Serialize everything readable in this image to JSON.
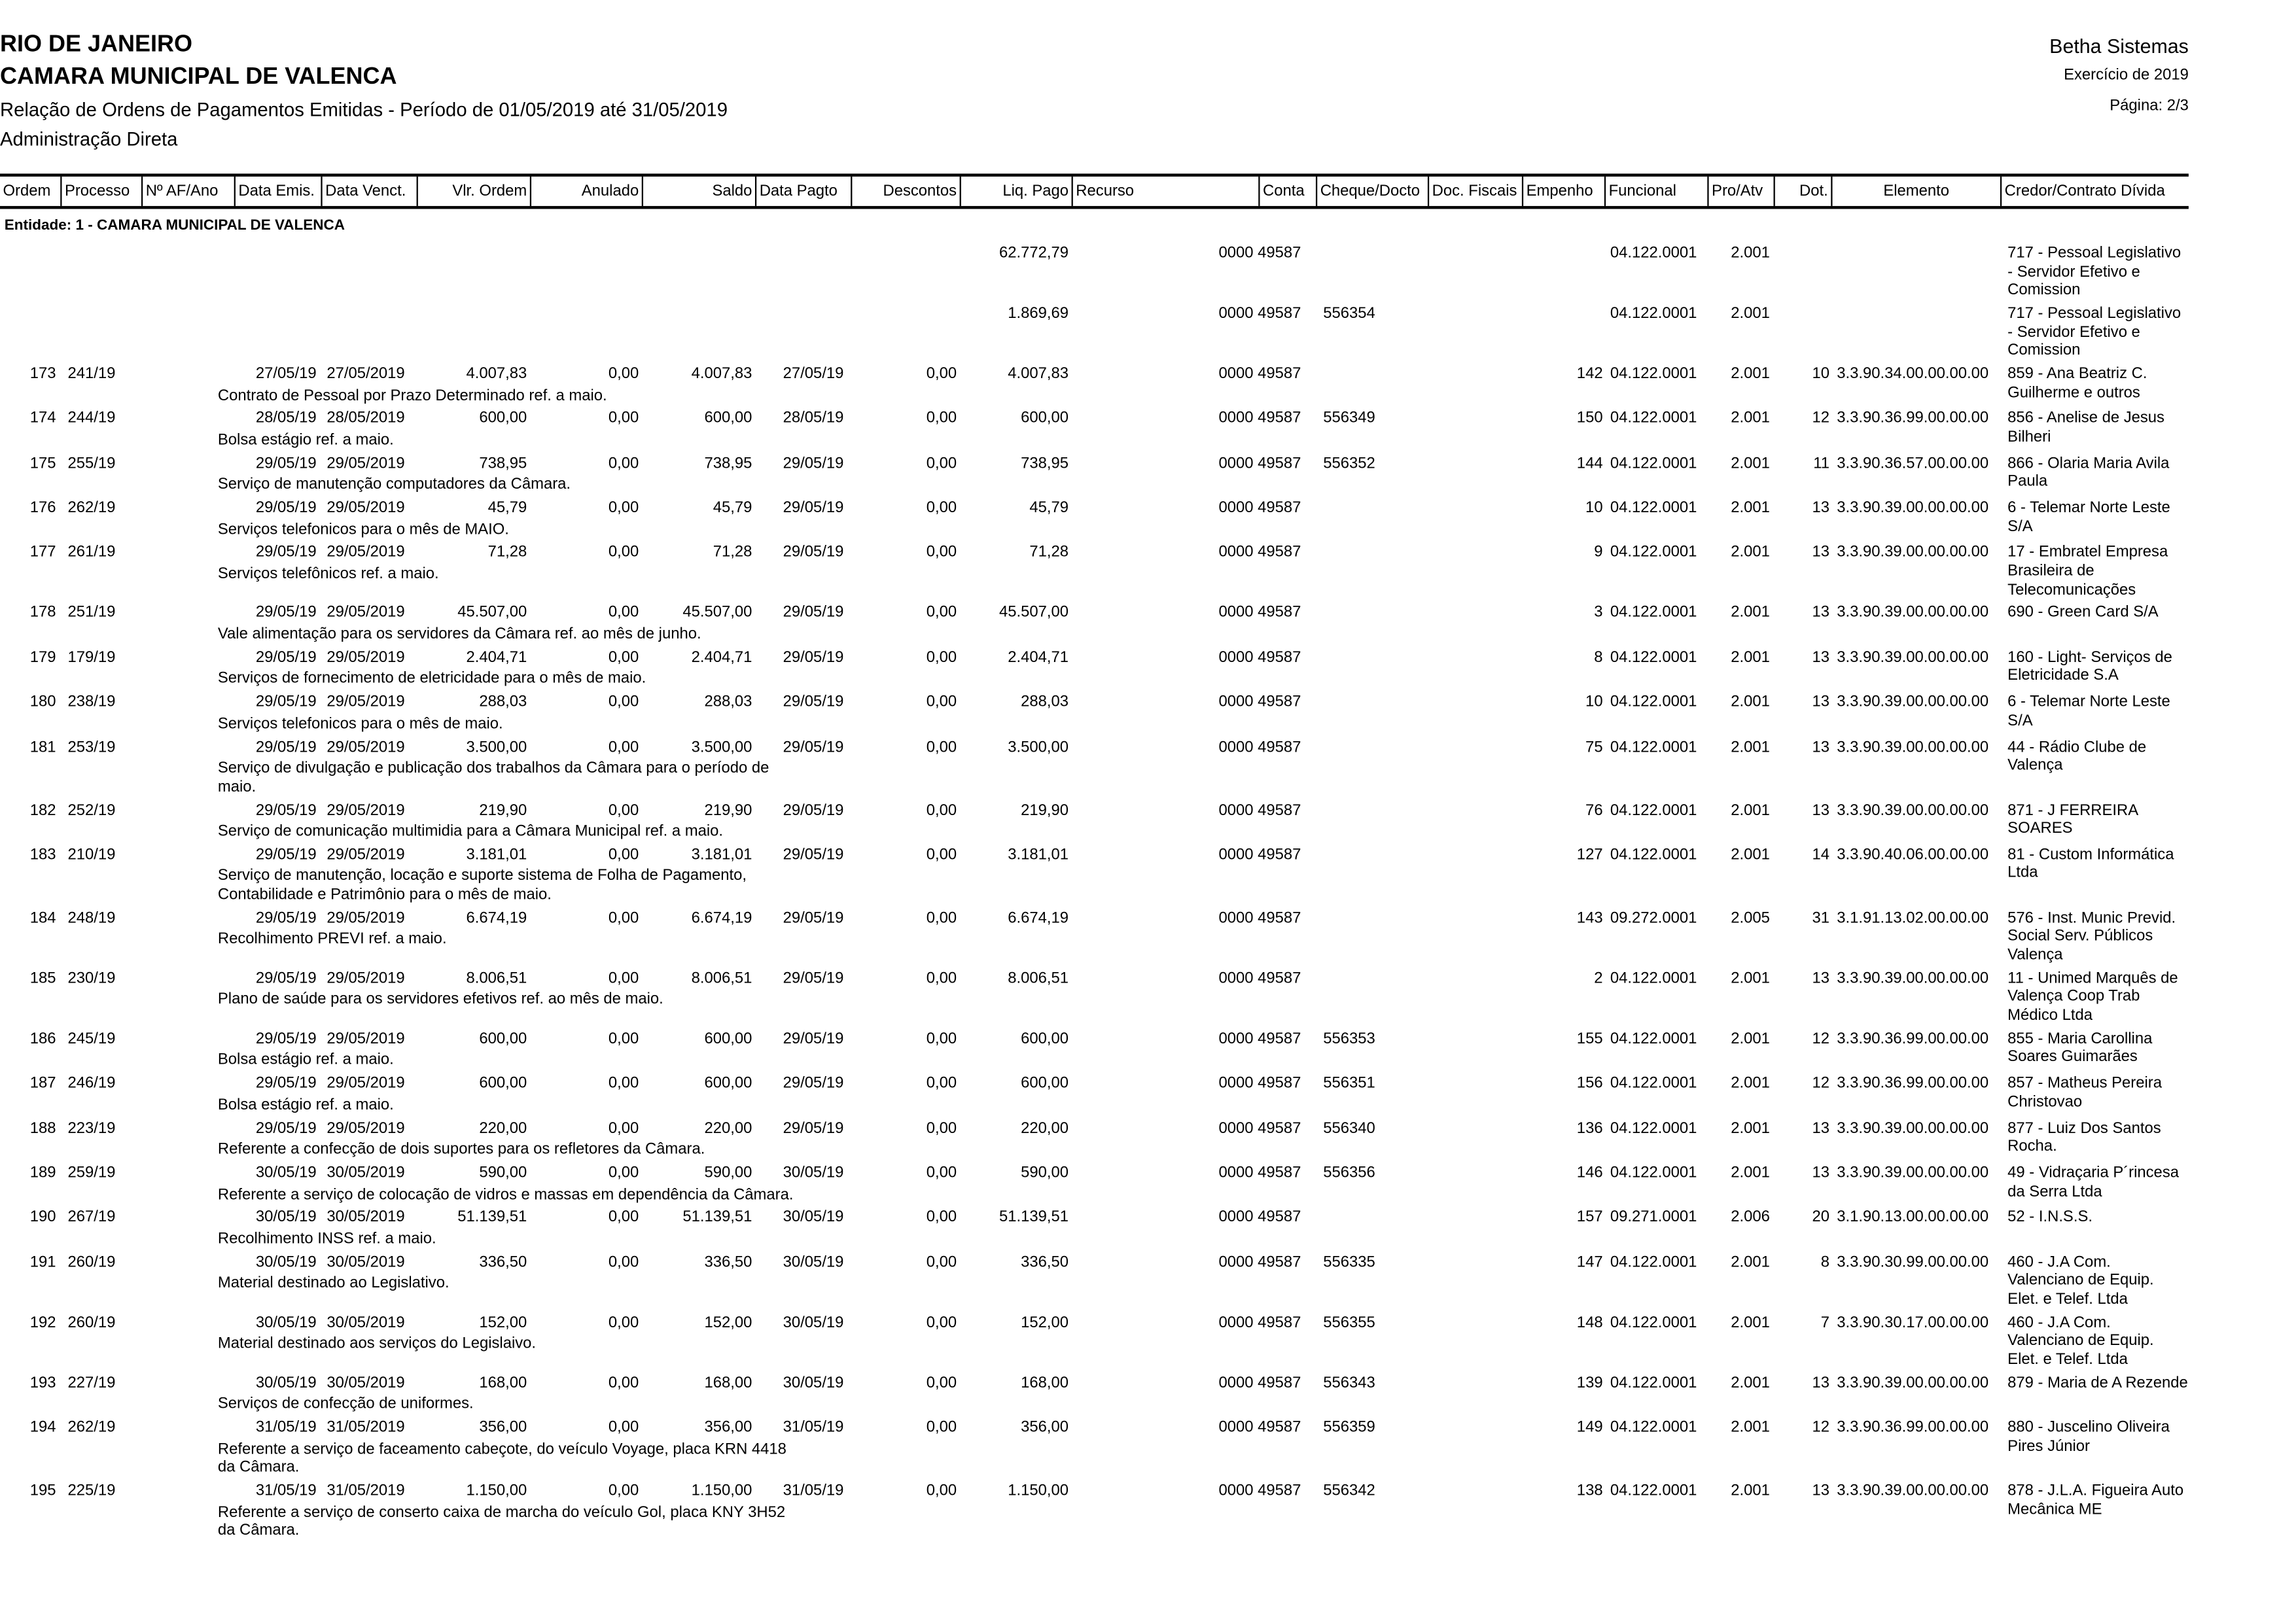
{
  "header": {
    "state": "RIO DE JANEIRO",
    "entity": "CAMARA MUNICIPAL DE VALENCA",
    "report_title": "Relação de Ordens de Pagamentos Emitidas - Período de 01/05/2019 até 31/05/2019",
    "administration": "Administração Direta",
    "vendor": "Betha Sistemas",
    "exercise": "Exercício de 2019",
    "page": "Página: 2/3"
  },
  "columns": [
    "Ordem",
    "Processo",
    "Nº AF/Ano",
    "Data Emis.",
    "Data Venct.",
    "Vlr. Ordem",
    "Anulado",
    "Saldo",
    "Data Pagto",
    "Descontos",
    "Liq. Pago",
    "Recurso",
    "Conta",
    "Cheque/Docto",
    "Doc. Fiscais",
    "Empenho",
    "Funcional",
    "Pro/Atv",
    "Dot.",
    "Elemento",
    "Credor/Contrato Dívida"
  ],
  "entity_line": "Entidade: 1 - CAMARA MUNICIPAL DE VALENCA",
  "rows": [
    {
      "ordem": "",
      "processo": "",
      "emis": "",
      "venct": "",
      "vlr": "",
      "anulado": "",
      "saldo": "",
      "pagto": "",
      "descontos": "",
      "liq": "62.772,79",
      "conta": "0000 49587",
      "cheque": "",
      "empenho": "",
      "funcional": "04.122.0001",
      "proatv": "2.001",
      "dot": "",
      "elemento": "",
      "credor": "717 - Pessoal Legislativo - Servidor Efetivo e Comission",
      "descricao": ""
    },
    {
      "ordem": "",
      "processo": "",
      "emis": "",
      "venct": "",
      "vlr": "",
      "anulado": "",
      "saldo": "",
      "pagto": "",
      "descontos": "",
      "liq": "1.869,69",
      "conta": "0000 49587",
      "cheque": "556354",
      "empenho": "",
      "funcional": "04.122.0001",
      "proatv": "2.001",
      "dot": "",
      "elemento": "",
      "credor": "717 - Pessoal Legislativo - Servidor Efetivo e Comission",
      "descricao": ""
    },
    {
      "ordem": "173",
      "processo": "241/19",
      "emis": "27/05/19",
      "venct": "27/05/2019",
      "vlr": "4.007,83",
      "anulado": "0,00",
      "saldo": "4.007,83",
      "pagto": "27/05/19",
      "descontos": "0,00",
      "liq": "4.007,83",
      "conta": "0000 49587",
      "cheque": "",
      "empenho": "142",
      "funcional": "04.122.0001",
      "proatv": "2.001",
      "dot": "10",
      "elemento": "3.3.90.34.00.00.00.00",
      "credor": "859 - Ana Beatriz C. Guilherme e outros",
      "descricao": "Contrato de Pessoal por Prazo Determinado ref. a maio."
    },
    {
      "ordem": "174",
      "processo": "244/19",
      "emis": "28/05/19",
      "venct": "28/05/2019",
      "vlr": "600,00",
      "anulado": "0,00",
      "saldo": "600,00",
      "pagto": "28/05/19",
      "descontos": "0,00",
      "liq": "600,00",
      "conta": "0000 49587",
      "cheque": "556349",
      "empenho": "150",
      "funcional": "04.122.0001",
      "proatv": "2.001",
      "dot": "12",
      "elemento": "3.3.90.36.99.00.00.00",
      "credor": "856 - Anelise de Jesus Bilheri",
      "descricao": "Bolsa estágio ref. a maio."
    },
    {
      "ordem": "175",
      "processo": "255/19",
      "emis": "29/05/19",
      "venct": "29/05/2019",
      "vlr": "738,95",
      "anulado": "0,00",
      "saldo": "738,95",
      "pagto": "29/05/19",
      "descontos": "0,00",
      "liq": "738,95",
      "conta": "0000 49587",
      "cheque": "556352",
      "empenho": "144",
      "funcional": "04.122.0001",
      "proatv": "2.001",
      "dot": "11",
      "elemento": "3.3.90.36.57.00.00.00",
      "credor": "866 - Olaria Maria Avila Paula",
      "descricao": "Serviço de manutenção computadores da Câmara."
    },
    {
      "ordem": "176",
      "processo": "262/19",
      "emis": "29/05/19",
      "venct": "29/05/2019",
      "vlr": "45,79",
      "anulado": "0,00",
      "saldo": "45,79",
      "pagto": "29/05/19",
      "descontos": "0,00",
      "liq": "45,79",
      "conta": "0000 49587",
      "cheque": "",
      "empenho": "10",
      "funcional": "04.122.0001",
      "proatv": "2.001",
      "dot": "13",
      "elemento": "3.3.90.39.00.00.00.00",
      "credor": "6 - Telemar Norte Leste S/A",
      "descricao": "Serviços telefonicos para o mês de MAIO."
    },
    {
      "ordem": "177",
      "processo": "261/19",
      "emis": "29/05/19",
      "venct": "29/05/2019",
      "vlr": "71,28",
      "anulado": "0,00",
      "saldo": "71,28",
      "pagto": "29/05/19",
      "descontos": "0,00",
      "liq": "71,28",
      "conta": "0000 49587",
      "cheque": "",
      "empenho": "9",
      "funcional": "04.122.0001",
      "proatv": "2.001",
      "dot": "13",
      "elemento": "3.3.90.39.00.00.00.00",
      "credor": "17 - Embratel Empresa Brasileira de Telecomunicações",
      "descricao": " Serviços telefônicos ref. a maio."
    },
    {
      "ordem": "178",
      "processo": "251/19",
      "emis": "29/05/19",
      "venct": "29/05/2019",
      "vlr": "45.507,00",
      "anulado": "0,00",
      "saldo": "45.507,00",
      "pagto": "29/05/19",
      "descontos": "0,00",
      "liq": "45.507,00",
      "conta": "0000 49587",
      "cheque": "",
      "empenho": "3",
      "funcional": "04.122.0001",
      "proatv": "2.001",
      "dot": "13",
      "elemento": "3.3.90.39.00.00.00.00",
      "credor": "690 - Green Card S/A",
      "descricao": "Vale alimentação para os servidores da Câmara ref. ao mês de junho."
    },
    {
      "ordem": "179",
      "processo": "179/19",
      "emis": "29/05/19",
      "venct": "29/05/2019",
      "vlr": "2.404,71",
      "anulado": "0,00",
      "saldo": "2.404,71",
      "pagto": "29/05/19",
      "descontos": "0,00",
      "liq": "2.404,71",
      "conta": "0000 49587",
      "cheque": "",
      "empenho": "8",
      "funcional": "04.122.0001",
      "proatv": "2.001",
      "dot": "13",
      "elemento": "3.3.90.39.00.00.00.00",
      "credor": "160 - Light- Serviços de Eletricidade S.A",
      "descricao": "Serviços de fornecimento de eletricidade para o mês de maio."
    },
    {
      "ordem": "180",
      "processo": "238/19",
      "emis": "29/05/19",
      "venct": "29/05/2019",
      "vlr": "288,03",
      "anulado": "0,00",
      "saldo": "288,03",
      "pagto": "29/05/19",
      "descontos": "0,00",
      "liq": "288,03",
      "conta": "0000 49587",
      "cheque": "",
      "empenho": "10",
      "funcional": "04.122.0001",
      "proatv": "2.001",
      "dot": "13",
      "elemento": "3.3.90.39.00.00.00.00",
      "credor": "6 - Telemar Norte Leste S/A",
      "descricao": "Serviços telefonicos para o mês de maio."
    },
    {
      "ordem": "181",
      "processo": "253/19",
      "emis": "29/05/19",
      "venct": "29/05/2019",
      "vlr": "3.500,00",
      "anulado": "0,00",
      "saldo": "3.500,00",
      "pagto": "29/05/19",
      "descontos": "0,00",
      "liq": "3.500,00",
      "conta": "0000 49587",
      "cheque": "",
      "empenho": "75",
      "funcional": "04.122.0001",
      "proatv": "2.001",
      "dot": "13",
      "elemento": "3.3.90.39.00.00.00.00",
      "credor": "44 - Rádio Clube de Valença",
      "descricao": "Serviço de divulgação e publicação dos trabalhos da Câmara para o período de maio."
    },
    {
      "ordem": "182",
      "processo": "252/19",
      "emis": "29/05/19",
      "venct": "29/05/2019",
      "vlr": "219,90",
      "anulado": "0,00",
      "saldo": "219,90",
      "pagto": "29/05/19",
      "descontos": "0,00",
      "liq": "219,90",
      "conta": "0000 49587",
      "cheque": "",
      "empenho": "76",
      "funcional": "04.122.0001",
      "proatv": "2.001",
      "dot": "13",
      "elemento": "3.3.90.39.00.00.00.00",
      "credor": "871 - J FERREIRA SOARES",
      "descricao": "Serviço de comunicação multimidia para a Câmara Municipal ref. a maio."
    },
    {
      "ordem": "183",
      "processo": "210/19",
      "emis": "29/05/19",
      "venct": "29/05/2019",
      "vlr": "3.181,01",
      "anulado": "0,00",
      "saldo": "3.181,01",
      "pagto": "29/05/19",
      "descontos": "0,00",
      "liq": "3.181,01",
      "conta": "0000 49587",
      "cheque": "",
      "empenho": "127",
      "funcional": "04.122.0001",
      "proatv": "2.001",
      "dot": "14",
      "elemento": "3.3.90.40.06.00.00.00",
      "credor": "81 - Custom Informática Ltda",
      "descricao": "Serviço de manutenção, locação e suporte sistema de Folha de Pagamento, Contabilidade e Patrimônio para o mês de maio."
    },
    {
      "ordem": "184",
      "processo": "248/19",
      "emis": "29/05/19",
      "venct": "29/05/2019",
      "vlr": "6.674,19",
      "anulado": "0,00",
      "saldo": "6.674,19",
      "pagto": "29/05/19",
      "descontos": "0,00",
      "liq": "6.674,19",
      "conta": "0000 49587",
      "cheque": "",
      "empenho": "143",
      "funcional": "09.272.0001",
      "proatv": "2.005",
      "dot": "31",
      "elemento": "3.1.91.13.02.00.00.00",
      "credor": "576 - Inst. Munic Previd. Social Serv. Públicos Valença",
      "descricao": "Recolhimento PREVI ref. a maio."
    },
    {
      "ordem": "185",
      "processo": "230/19",
      "emis": "29/05/19",
      "venct": "29/05/2019",
      "vlr": "8.006,51",
      "anulado": "0,00",
      "saldo": "8.006,51",
      "pagto": "29/05/19",
      "descontos": "0,00",
      "liq": "8.006,51",
      "conta": "0000 49587",
      "cheque": "",
      "empenho": "2",
      "funcional": "04.122.0001",
      "proatv": "2.001",
      "dot": "13",
      "elemento": "3.3.90.39.00.00.00.00",
      "credor": "11 - Unimed Marquês de Valença Coop Trab Médico Ltda",
      "descricao": "Plano de saúde para os servidores efetivos ref. ao mês de maio."
    },
    {
      "ordem": "186",
      "processo": "245/19",
      "emis": "29/05/19",
      "venct": "29/05/2019",
      "vlr": "600,00",
      "anulado": "0,00",
      "saldo": "600,00",
      "pagto": "29/05/19",
      "descontos": "0,00",
      "liq": "600,00",
      "conta": "0000 49587",
      "cheque": "556353",
      "empenho": "155",
      "funcional": "04.122.0001",
      "proatv": "2.001",
      "dot": "12",
      "elemento": "3.3.90.36.99.00.00.00",
      "credor": "855 - Maria Carollina Soares Guimarães",
      "descricao": "Bolsa estágio ref. a maio."
    },
    {
      "ordem": "187",
      "processo": "246/19",
      "emis": "29/05/19",
      "venct": "29/05/2019",
      "vlr": "600,00",
      "anulado": "0,00",
      "saldo": "600,00",
      "pagto": "29/05/19",
      "descontos": "0,00",
      "liq": "600,00",
      "conta": "0000 49587",
      "cheque": "556351",
      "empenho": "156",
      "funcional": "04.122.0001",
      "proatv": "2.001",
      "dot": "12",
      "elemento": "3.3.90.36.99.00.00.00",
      "credor": "857 - Matheus Pereira Christovao",
      "descricao": "Bolsa estágio ref. a maio."
    },
    {
      "ordem": "188",
      "processo": "223/19",
      "emis": "29/05/19",
      "venct": "29/05/2019",
      "vlr": "220,00",
      "anulado": "0,00",
      "saldo": "220,00",
      "pagto": "29/05/19",
      "descontos": "0,00",
      "liq": "220,00",
      "conta": "0000 49587",
      "cheque": "556340",
      "empenho": "136",
      "funcional": "04.122.0001",
      "proatv": "2.001",
      "dot": "13",
      "elemento": "3.3.90.39.00.00.00.00",
      "credor": "877 - Luiz Dos Santos Rocha.",
      "descricao": "Referente a confecção de dois suportes para os refletores da Câmara."
    },
    {
      "ordem": "189",
      "processo": "259/19",
      "emis": "30/05/19",
      "venct": "30/05/2019",
      "vlr": "590,00",
      "anulado": "0,00",
      "saldo": "590,00",
      "pagto": "30/05/19",
      "descontos": "0,00",
      "liq": "590,00",
      "conta": "0000 49587",
      "cheque": "556356",
      "empenho": "146",
      "funcional": "04.122.0001",
      "proatv": "2.001",
      "dot": "13",
      "elemento": "3.3.90.39.00.00.00.00",
      "credor": "49 - Vidraçaria P´rincesa da Serra Ltda",
      "descricao": "Referente a serviço de colocação de vidros e massas em dependência da Câmara."
    },
    {
      "ordem": "190",
      "processo": "267/19",
      "emis": "30/05/19",
      "venct": "30/05/2019",
      "vlr": "51.139,51",
      "anulado": "0,00",
      "saldo": "51.139,51",
      "pagto": "30/05/19",
      "descontos": "0,00",
      "liq": "51.139,51",
      "conta": "0000 49587",
      "cheque": "",
      "empenho": "157",
      "funcional": "09.271.0001",
      "proatv": "2.006",
      "dot": "20",
      "elemento": "3.1.90.13.00.00.00.00",
      "credor": "52 - I.N.S.S.",
      "descricao": "Recolhimento INSS ref. a maio."
    },
    {
      "ordem": "191",
      "processo": "260/19",
      "emis": "30/05/19",
      "venct": "30/05/2019",
      "vlr": "336,50",
      "anulado": "0,00",
      "saldo": "336,50",
      "pagto": "30/05/19",
      "descontos": "0,00",
      "liq": "336,50",
      "conta": "0000 49587",
      "cheque": "556335",
      "empenho": "147",
      "funcional": "04.122.0001",
      "proatv": "2.001",
      "dot": "8",
      "elemento": "3.3.90.30.99.00.00.00",
      "credor": "460 - J.A Com. Valenciano de Equip. Elet. e Telef. Ltda",
      "descricao": "Material destinado ao Legislativo."
    },
    {
      "ordem": "192",
      "processo": "260/19",
      "emis": "30/05/19",
      "venct": "30/05/2019",
      "vlr": "152,00",
      "anulado": "0,00",
      "saldo": "152,00",
      "pagto": "30/05/19",
      "descontos": "0,00",
      "liq": "152,00",
      "conta": "0000 49587",
      "cheque": "556355",
      "empenho": "148",
      "funcional": "04.122.0001",
      "proatv": "2.001",
      "dot": "7",
      "elemento": "3.3.90.30.17.00.00.00",
      "credor": "460 - J.A Com. Valenciano de Equip. Elet. e Telef. Ltda",
      "descricao": "Material destinado aos serviços do Legislaivo."
    },
    {
      "ordem": "193",
      "processo": "227/19",
      "emis": "30/05/19",
      "venct": "30/05/2019",
      "vlr": "168,00",
      "anulado": "0,00",
      "saldo": "168,00",
      "pagto": "30/05/19",
      "descontos": "0,00",
      "liq": "168,00",
      "conta": "0000 49587",
      "cheque": "556343",
      "empenho": "139",
      "funcional": "04.122.0001",
      "proatv": "2.001",
      "dot": "13",
      "elemento": "3.3.90.39.00.00.00.00",
      "credor": "879 - Maria de A Rezende",
      "descricao": "Serviços de confecção de uniformes."
    },
    {
      "ordem": "194",
      "processo": "262/19",
      "emis": "31/05/19",
      "venct": "31/05/2019",
      "vlr": "356,00",
      "anulado": "0,00",
      "saldo": "356,00",
      "pagto": "31/05/19",
      "descontos": "0,00",
      "liq": "356,00",
      "conta": "0000 49587",
      "cheque": "556359",
      "empenho": "149",
      "funcional": "04.122.0001",
      "proatv": "2.001",
      "dot": "12",
      "elemento": "3.3.90.36.99.00.00.00",
      "credor": "880 - Juscelino Oliveira Pires Júnior",
      "descricao": "Referente a serviço de faceamento cabeçote, do veículo Voyage, placa KRN 4418 da Câmara."
    },
    {
      "ordem": "195",
      "processo": "225/19",
      "emis": "31/05/19",
      "venct": "31/05/2019",
      "vlr": "1.150,00",
      "anulado": "0,00",
      "saldo": "1.150,00",
      "pagto": "31/05/19",
      "descontos": "0,00",
      "liq": "1.150,00",
      "conta": "0000 49587",
      "cheque": "556342",
      "empenho": "138",
      "funcional": "04.122.0001",
      "proatv": "2.001",
      "dot": "13",
      "elemento": "3.3.90.39.00.00.00.00",
      "credor": "878 - J.L.A. Figueira Auto Mecânica ME",
      "descricao": "Referente a serviço de conserto caixa de marcha do veículo Gol, placa KNY 3H52 da Câmara."
    }
  ]
}
